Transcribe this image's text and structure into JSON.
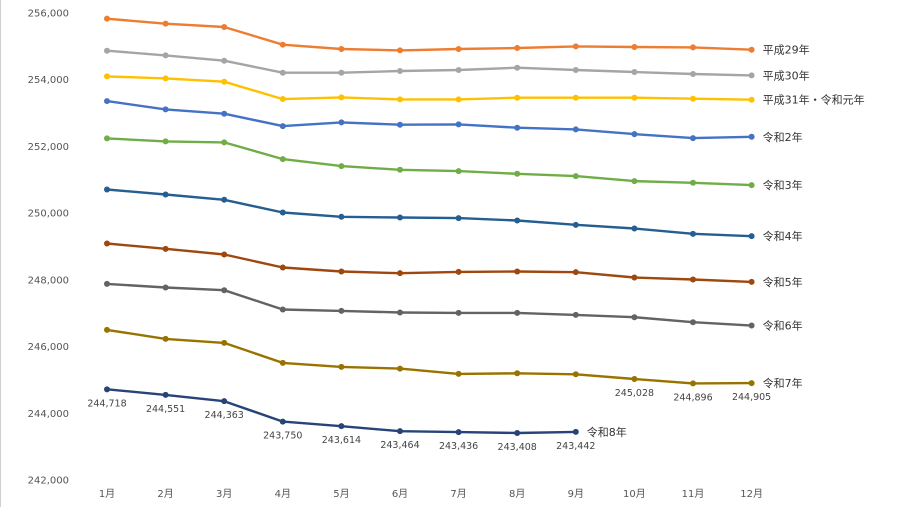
{
  "chart_data": {
    "type": "line",
    "categories": [
      "1月",
      "2月",
      "3月",
      "4月",
      "5月",
      "6月",
      "7月",
      "8月",
      "9月",
      "10月",
      "11月",
      "12月"
    ],
    "ylim": [
      242000,
      256000
    ],
    "yticks": [
      "242,000",
      "244,000",
      "246,000",
      "248,000",
      "250,000",
      "252,000",
      "254,000",
      "256,000"
    ],
    "grid": false,
    "series": [
      {
        "name": "平成29年",
        "color": "#ED7D31",
        "values": [
          255830,
          255680,
          255580,
          255050,
          254920,
          254880,
          254920,
          254950,
          255000,
          254980,
          254970,
          254900
        ]
      },
      {
        "name": "平成30年",
        "color": "#A5A5A5",
        "values": [
          254870,
          254730,
          254570,
          254210,
          254210,
          254260,
          254290,
          254360,
          254290,
          254230,
          254170,
          254130
        ]
      },
      {
        "name": "平成31年・令和元年",
        "color": "#FFC000",
        "values": [
          254100,
          254040,
          253940,
          253420,
          253470,
          253410,
          253410,
          253460,
          253460,
          253460,
          253430,
          253400
        ]
      },
      {
        "name": "令和2年",
        "color": "#4472C4",
        "values": [
          253360,
          253110,
          252980,
          252610,
          252720,
          252650,
          252660,
          252560,
          252510,
          252370,
          252250,
          252290
        ]
      },
      {
        "name": "令和3年",
        "color": "#70AD47",
        "values": [
          252240,
          252150,
          252120,
          251620,
          251410,
          251300,
          251260,
          251180,
          251110,
          250960,
          250910,
          250840
        ]
      },
      {
        "name": "令和4年",
        "color": "#255E91",
        "values": [
          250710,
          250560,
          250400,
          250020,
          249890,
          249870,
          249850,
          249780,
          249650,
          249540,
          249380,
          249310
        ]
      },
      {
        "name": "令和5年",
        "color": "#9E480E",
        "values": [
          249090,
          248930,
          248760,
          248370,
          248250,
          248200,
          248240,
          248250,
          248230,
          248070,
          248010,
          247940
        ]
      },
      {
        "name": "令和6年",
        "color": "#636363",
        "values": [
          247880,
          247770,
          247690,
          247110,
          247070,
          247020,
          247010,
          247010,
          246950,
          246880,
          246730,
          246630
        ]
      },
      {
        "name": "令和7年",
        "color": "#997300",
        "values": [
          246500,
          246230,
          246110,
          245510,
          245390,
          245340,
          245180,
          245200,
          245170,
          245028,
          244896,
          244905
        ],
        "data_labels": [
          null,
          null,
          null,
          null,
          null,
          null,
          null,
          null,
          null,
          "245,028",
          "244,896",
          "244,905"
        ]
      },
      {
        "name": "令和8年",
        "color": "#264478",
        "values": [
          244718,
          244551,
          244363,
          243750,
          243614,
          243464,
          243436,
          243408,
          243442,
          null,
          null,
          null
        ],
        "data_labels": [
          "244,718",
          "244,551",
          "244,363",
          "243,750",
          "243,614",
          "243,464",
          "243,436",
          "243,408",
          "243,442",
          null,
          null,
          null
        ]
      }
    ]
  }
}
